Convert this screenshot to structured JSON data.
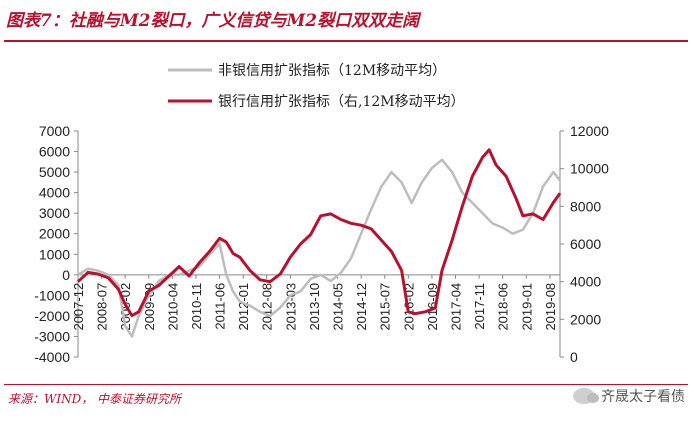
{
  "header": {
    "title": "图表7：社融与M2裂口，广义信贷与M2裂口双双走阔"
  },
  "footer": {
    "source": "来源：WIND， 中泰证券研究所",
    "watermark": "齐晟太子看债"
  },
  "chart_data": {
    "type": "line",
    "legend_position": "top-center",
    "grid": false,
    "x_tick_labels": [
      "2007-12",
      "2008-07",
      "2009-02",
      "2009-09",
      "2010-04",
      "2010-11",
      "2011-06",
      "2012-01",
      "2012-08",
      "2013-03",
      "2013-10",
      "2014-05",
      "2014-12",
      "2015-07",
      "2016-02",
      "2016-09",
      "2017-04",
      "2017-11",
      "2018-06",
      "2019-01",
      "2019-08"
    ],
    "x_range": [
      "2007-12",
      "2019-11"
    ],
    "y_left": {
      "range": [
        -4000,
        7000
      ],
      "ticks": [
        -4000,
        -3000,
        -2000,
        -1000,
        0,
        1000,
        2000,
        3000,
        4000,
        5000,
        6000,
        7000
      ]
    },
    "y_right": {
      "range": [
        0,
        12000
      ],
      "ticks": [
        0,
        2000,
        4000,
        6000,
        8000,
        10000,
        12000
      ]
    },
    "series": [
      {
        "name": "非银信用扩张指标（12M移动平均）",
        "axis": "left",
        "color": "#bdbdbd",
        "points": [
          [
            "2007-12",
            0
          ],
          [
            "2008-03",
            300
          ],
          [
            "2008-06",
            200
          ],
          [
            "2008-09",
            0
          ],
          [
            "2008-12",
            -500
          ],
          [
            "2009-02",
            -2500
          ],
          [
            "2009-04",
            -3000
          ],
          [
            "2009-06",
            -2000
          ],
          [
            "2009-09",
            -1000
          ],
          [
            "2009-12",
            -300
          ],
          [
            "2010-03",
            0
          ],
          [
            "2010-06",
            0
          ],
          [
            "2010-09",
            200
          ],
          [
            "2010-12",
            400
          ],
          [
            "2011-03",
            1000
          ],
          [
            "2011-06",
            1500
          ],
          [
            "2011-08",
            0
          ],
          [
            "2011-10",
            -800
          ],
          [
            "2011-12",
            -1300
          ],
          [
            "2012-03",
            -1500
          ],
          [
            "2012-06",
            -1800
          ],
          [
            "2012-09",
            -2000
          ],
          [
            "2012-12",
            -1600
          ],
          [
            "2013-03",
            -1000
          ],
          [
            "2013-06",
            -800
          ],
          [
            "2013-09",
            -200
          ],
          [
            "2013-12",
            0
          ],
          [
            "2014-03",
            -300
          ],
          [
            "2014-06",
            100
          ],
          [
            "2014-09",
            800
          ],
          [
            "2014-12",
            2000
          ],
          [
            "2015-03",
            3200
          ],
          [
            "2015-06",
            4300
          ],
          [
            "2015-09",
            5000
          ],
          [
            "2015-12",
            4500
          ],
          [
            "2016-03",
            3500
          ],
          [
            "2016-06",
            4500
          ],
          [
            "2016-09",
            5200
          ],
          [
            "2016-12",
            5600
          ],
          [
            "2017-03",
            5000
          ],
          [
            "2017-06",
            4000
          ],
          [
            "2017-09",
            3500
          ],
          [
            "2017-12",
            3000
          ],
          [
            "2018-03",
            2500
          ],
          [
            "2018-06",
            2300
          ],
          [
            "2018-09",
            2000
          ],
          [
            "2018-12",
            2200
          ],
          [
            "2019-03",
            3000
          ],
          [
            "2019-06",
            4300
          ],
          [
            "2019-09",
            5000
          ],
          [
            "2019-11",
            4600
          ]
        ]
      },
      {
        "name": "银行信用扩张指标（右,12M移动平均）",
        "axis": "right",
        "color": "#b5122f",
        "points": [
          [
            "2007-12",
            4000
          ],
          [
            "2008-03",
            4500
          ],
          [
            "2008-06",
            4400
          ],
          [
            "2008-09",
            4200
          ],
          [
            "2008-12",
            3600
          ],
          [
            "2009-02",
            2800
          ],
          [
            "2009-04",
            2200
          ],
          [
            "2009-06",
            2400
          ],
          [
            "2009-09",
            3500
          ],
          [
            "2009-12",
            3800
          ],
          [
            "2010-03",
            4300
          ],
          [
            "2010-06",
            4800
          ],
          [
            "2010-09",
            4300
          ],
          [
            "2010-12",
            5000
          ],
          [
            "2011-03",
            5600
          ],
          [
            "2011-06",
            6300
          ],
          [
            "2011-08",
            6100
          ],
          [
            "2011-10",
            5500
          ],
          [
            "2011-12",
            5300
          ],
          [
            "2012-03",
            4600
          ],
          [
            "2012-06",
            4100
          ],
          [
            "2012-09",
            4000
          ],
          [
            "2012-12",
            4400
          ],
          [
            "2013-03",
            5300
          ],
          [
            "2013-06",
            6000
          ],
          [
            "2013-09",
            6500
          ],
          [
            "2013-12",
            7500
          ],
          [
            "2014-03",
            7600
          ],
          [
            "2014-06",
            7300
          ],
          [
            "2014-09",
            7100
          ],
          [
            "2014-12",
            7000
          ],
          [
            "2015-03",
            6800
          ],
          [
            "2015-06",
            6200
          ],
          [
            "2015-09",
            5600
          ],
          [
            "2015-12",
            4600
          ],
          [
            "2016-02",
            2400
          ],
          [
            "2016-04",
            2300
          ],
          [
            "2016-07",
            2400
          ],
          [
            "2016-10",
            2600
          ],
          [
            "2016-12",
            4600
          ],
          [
            "2017-03",
            6200
          ],
          [
            "2017-06",
            8000
          ],
          [
            "2017-09",
            9600
          ],
          [
            "2017-12",
            10600
          ],
          [
            "2018-02",
            11000
          ],
          [
            "2018-04",
            10200
          ],
          [
            "2018-07",
            9600
          ],
          [
            "2018-10",
            8400
          ],
          [
            "2018-12",
            7500
          ],
          [
            "2019-03",
            7600
          ],
          [
            "2019-06",
            7300
          ],
          [
            "2019-09",
            8200
          ],
          [
            "2019-11",
            8700
          ]
        ]
      }
    ]
  }
}
